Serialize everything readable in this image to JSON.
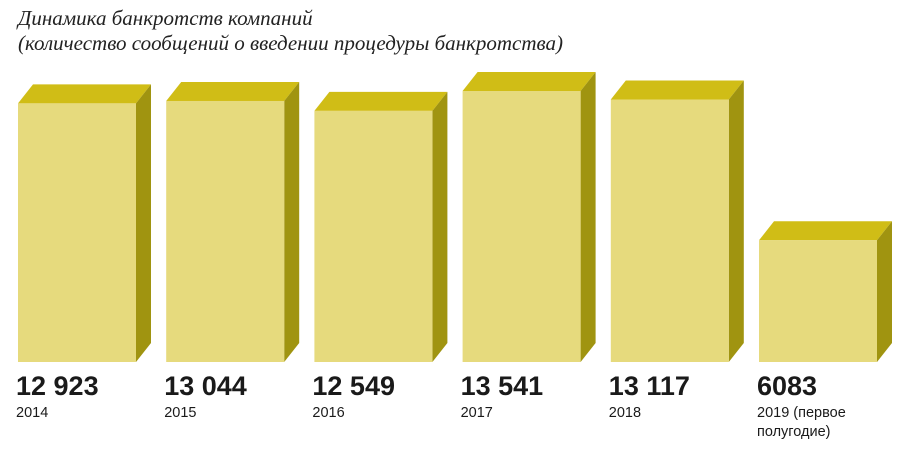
{
  "title": {
    "line1": "Динамика банкротств компаний",
    "line2": "(количество сообщений о введении процедуры банкротства)"
  },
  "colors": {
    "front": "#e6da7d",
    "top": "#d0bd16",
    "side": "#a09410"
  },
  "chart_data": {
    "type": "bar",
    "categories": [
      "2014",
      "2015",
      "2016",
      "2017",
      "2018",
      "2019 (первое полугодие)"
    ],
    "category_lines": [
      [
        "2014"
      ],
      [
        "2015"
      ],
      [
        "2016"
      ],
      [
        "2017"
      ],
      [
        "2018"
      ],
      [
        "2019 (первое",
        "полугодие)"
      ]
    ],
    "values": [
      12923,
      13044,
      12549,
      13541,
      13117,
      6083
    ],
    "value_labels": [
      "12 923",
      "13 044",
      "12 549",
      "13 541",
      "13 117",
      "6083"
    ],
    "title": "Динамика банкротств компаний (количество сообщений о введении процедуры банкротства)",
    "xlabel": "",
    "ylabel": "",
    "grid": false,
    "legend": "none"
  }
}
